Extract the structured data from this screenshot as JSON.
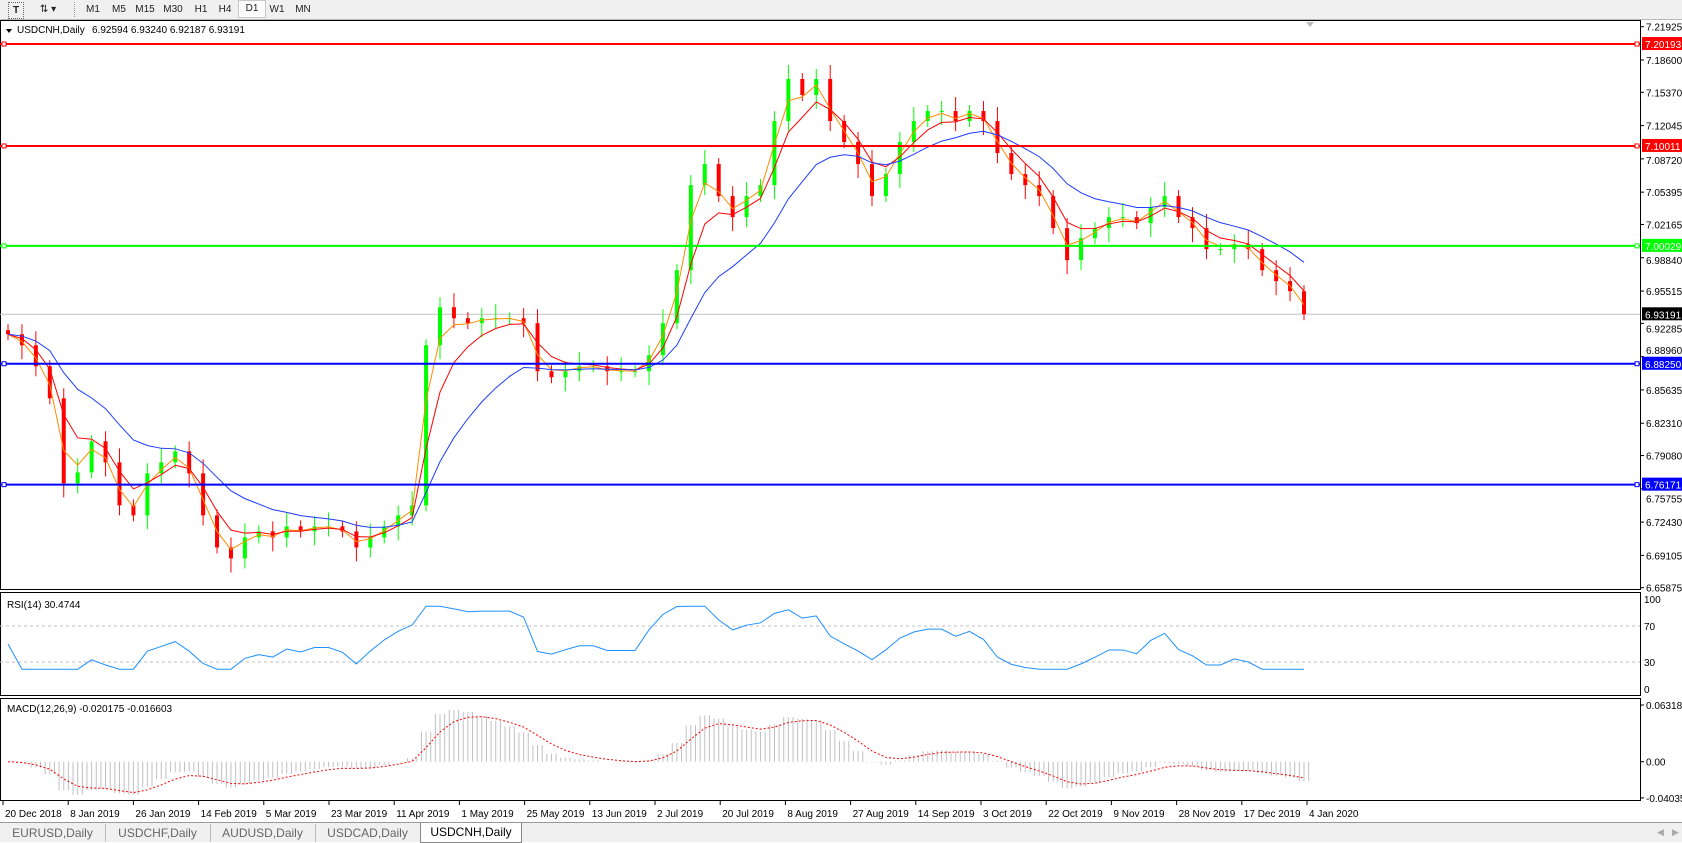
{
  "toolbar": {
    "text_tool_icon": "text-T-icon",
    "draw_tool_icon": "drawing-tools-icon",
    "timeframes": [
      "M1",
      "M5",
      "M15",
      "M30",
      "H1",
      "H4",
      "D1",
      "W1",
      "MN"
    ],
    "active_timeframe": "D1"
  },
  "chart": {
    "symbol_label": "USDCNH,Daily",
    "ohlc": "6.92594 6.93240 6.92187 6.93191",
    "current_price": "6.93191",
    "colors": {
      "bull": "#00ff00",
      "bear": "#ff0000",
      "ma_fast": "#ff8c00",
      "ma_mid": "#ff0000",
      "ma_slow": "#1e3cff",
      "rsi": "#1e90ff",
      "macd_signal": "#ff0000",
      "macd_hist": "#c0c0c0"
    },
    "hlines": [
      {
        "price": "7.20193",
        "color": "#ff0000"
      },
      {
        "price": "7.10011",
        "color": "#ff0000"
      },
      {
        "price": "7.00029",
        "color": "#00ff00"
      },
      {
        "price": "6.88250",
        "color": "#0000ff"
      },
      {
        "price": "6.76171",
        "color": "#0000ff"
      }
    ],
    "price_ticks": [
      "7.21925",
      "7.18600",
      "7.15370",
      "7.12045",
      "7.08720",
      "7.05395",
      "7.02165",
      "6.98840",
      "6.95515",
      "6.92285",
      "6.88960",
      "6.85635",
      "6.82310",
      "6.79080",
      "6.75755",
      "6.72430",
      "6.69105",
      "6.65875"
    ],
    "date_ticks": [
      "20 Dec 2018",
      "8 Jan 2019",
      "26 Jan 2019",
      "14 Feb 2019",
      "5 Mar 2019",
      "23 Mar 2019",
      "11 Apr 2019",
      "1 May 2019",
      "25 May 2019",
      "13 Jun 2019",
      "2 Jul 2019",
      "20 Jul 2019",
      "8 Aug 2019",
      "27 Aug 2019",
      "14 Sep 2019",
      "3 Oct 2019",
      "22 Oct 2019",
      "9 Nov 2019",
      "28 Nov 2019",
      "17 Dec 2019",
      "4 Jan 2020"
    ],
    "closes": [
      6.912,
      6.901,
      6.88,
      6.848,
      6.763,
      6.774,
      6.805,
      6.784,
      6.741,
      6.731,
      6.773,
      6.784,
      6.795,
      6.773,
      6.731,
      6.699,
      6.688,
      6.709,
      6.715,
      6.709,
      6.72,
      6.715,
      6.72,
      6.72,
      6.715,
      6.699,
      6.709,
      6.72,
      6.731,
      6.741,
      6.901,
      6.939,
      6.928,
      6.923,
      6.928,
      6.928,
      6.928,
      6.923,
      6.875,
      6.869,
      6.875,
      6.88,
      6.88,
      6.875,
      6.875,
      6.875,
      6.891,
      6.923,
      6.976,
      7.061,
      7.082,
      7.05,
      7.029,
      7.05,
      7.061,
      7.125,
      7.167,
      7.151,
      7.167,
      7.125,
      7.104,
      7.082,
      7.05,
      7.072,
      7.104,
      7.125,
      7.135,
      7.135,
      7.125,
      7.135,
      7.125,
      7.093,
      7.072,
      7.061,
      7.05,
      7.018,
      6.986,
      7.008,
      7.018,
      7.029,
      7.029,
      7.023,
      7.039,
      7.05,
      7.029,
      7.018,
      6.997,
      6.997,
      7.002,
      6.997,
      6.976,
      6.965,
      6.955,
      6.932
    ]
  },
  "rsi": {
    "label": "RSI(14) 30.4744",
    "ticks": [
      "100",
      "70",
      "30",
      "0"
    ]
  },
  "macd": {
    "label": "MACD(12,26,9) -0.020175 -0.016603",
    "ticks": [
      "0.063184",
      "0.00",
      "-0.040355"
    ]
  },
  "tabs": [
    {
      "label": "EURUSD,Daily"
    },
    {
      "label": "USDCHF,Daily"
    },
    {
      "label": "AUDUSD,Daily"
    },
    {
      "label": "USDCAD,Daily"
    },
    {
      "label": "USDCNH,Daily",
      "active": true
    }
  ]
}
